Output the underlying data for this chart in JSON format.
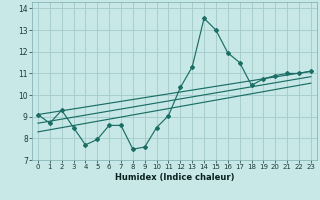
{
  "xlabel": "Humidex (Indice chaleur)",
  "bg_color": "#c8e8e8",
  "grid_color": "#a8cece",
  "line_color": "#1a6e64",
  "xlim": [
    -0.5,
    23.5
  ],
  "ylim": [
    7,
    14.3
  ],
  "yticks": [
    7,
    8,
    9,
    10,
    11,
    12,
    13,
    14
  ],
  "xticks": [
    0,
    1,
    2,
    3,
    4,
    5,
    6,
    7,
    8,
    9,
    10,
    11,
    12,
    13,
    14,
    15,
    16,
    17,
    18,
    19,
    20,
    21,
    22,
    23
  ],
  "main_x": [
    0,
    1,
    2,
    3,
    4,
    5,
    6,
    7,
    8,
    9,
    10,
    11,
    12,
    13,
    14,
    15,
    16,
    17,
    18,
    19,
    20,
    21,
    22,
    23
  ],
  "main_y": [
    9.1,
    8.7,
    9.3,
    8.5,
    7.7,
    7.95,
    8.6,
    8.6,
    7.5,
    7.6,
    8.5,
    9.05,
    10.35,
    11.3,
    13.55,
    13.0,
    11.95,
    11.5,
    10.45,
    10.75,
    10.9,
    11.0,
    11.0,
    11.1
  ],
  "trend_lines": [
    {
      "x": [
        0,
        23
      ],
      "y": [
        9.1,
        11.1
      ]
    },
    {
      "x": [
        0,
        23
      ],
      "y": [
        8.7,
        10.85
      ]
    },
    {
      "x": [
        0,
        23
      ],
      "y": [
        8.3,
        10.55
      ]
    }
  ]
}
